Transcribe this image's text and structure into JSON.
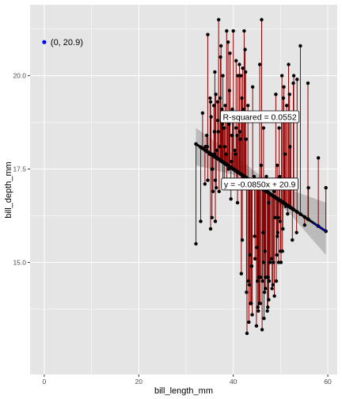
{
  "chart_data": {
    "type": "scatter",
    "xlabel": "bill_length_mm",
    "ylabel": "bill_depth_mm",
    "xlim": [
      -3.0,
      62.0
    ],
    "ylim": [
      12.0,
      21.9
    ],
    "x_ticks": [
      0,
      20,
      40,
      60
    ],
    "x_tick_labels": [
      "0",
      "20",
      "40",
      "60"
    ],
    "y_ticks": [
      15.0,
      17.5,
      20.0
    ],
    "y_tick_labels": [
      "15.0",
      "17.5",
      "20.0"
    ],
    "grid": true,
    "colors": {
      "panel": "#e5e5e5",
      "grid": "#ffffff",
      "point": "#000000",
      "residual": "#8b0000",
      "fit_line": "#000000",
      "ci_band": "#999999",
      "intercept_point": "#0000ff",
      "highlight_line": "#0000ff"
    },
    "regression": {
      "slope": -0.085,
      "intercept": 20.9
    },
    "ci_band": {
      "x": [
        32.1,
        40,
        46,
        52,
        59.6
      ],
      "lower": [
        17.6,
        17.35,
        16.95,
        16.3,
        15.2
      ],
      "upper": [
        18.6,
        17.9,
        17.3,
        16.95,
        16.6
      ]
    },
    "highlight_segment": {
      "x": [
        57.0,
        59.6
      ]
    },
    "intercept_point": {
      "x": 0,
      "y": 20.9,
      "label": "(0, 20.9)"
    },
    "annotations": [
      {
        "text": "R-squared = 0.0552",
        "x": 45.6,
        "y": 18.9
      },
      {
        "text": "y = -0.0850x + 20.9",
        "x": 45.6,
        "y": 17.1
      }
    ],
    "points": [
      [
        32.1,
        15.5
      ],
      [
        33.1,
        16.1
      ],
      [
        33.5,
        19.0
      ],
      [
        34.0,
        17.1
      ],
      [
        34.1,
        18.1
      ],
      [
        34.4,
        18.4
      ],
      [
        34.5,
        18.1
      ],
      [
        34.6,
        21.1
      ],
      [
        34.6,
        17.2
      ],
      [
        35.0,
        17.9
      ],
      [
        35.1,
        19.4
      ],
      [
        35.2,
        15.9
      ],
      [
        35.3,
        18.9
      ],
      [
        35.5,
        16.2
      ],
      [
        35.5,
        17.5
      ],
      [
        35.6,
        17.5
      ],
      [
        35.7,
        16.9
      ],
      [
        35.9,
        19.2
      ],
      [
        36.0,
        18.5
      ],
      [
        36.0,
        17.9
      ],
      [
        36.2,
        16.1
      ],
      [
        36.2,
        17.2
      ],
      [
        36.3,
        19.5
      ],
      [
        36.4,
        17.0
      ],
      [
        36.5,
        18.0
      ],
      [
        36.6,
        17.8
      ],
      [
        36.7,
        19.3
      ],
      [
        36.7,
        18.8
      ],
      [
        36.8,
        18.5
      ],
      [
        36.9,
        21.5
      ],
      [
        37.0,
        16.9
      ],
      [
        37.2,
        18.1
      ],
      [
        37.2,
        19.4
      ],
      [
        37.3,
        20.5
      ],
      [
        37.5,
        18.9
      ],
      [
        37.6,
        19.1
      ],
      [
        37.7,
        18.7
      ],
      [
        37.8,
        17.1
      ],
      [
        37.8,
        20.0
      ],
      [
        37.9,
        18.6
      ],
      [
        38.1,
        18.6
      ],
      [
        38.1,
        17.0
      ],
      [
        38.2,
        18.1
      ],
      [
        38.3,
        19.2
      ],
      [
        38.5,
        17.9
      ],
      [
        38.6,
        21.2
      ],
      [
        38.6,
        17.2
      ],
      [
        38.7,
        19.0
      ],
      [
        38.8,
        17.6
      ],
      [
        38.9,
        18.8
      ],
      [
        39.0,
        17.5
      ],
      [
        39.1,
        18.7
      ],
      [
        39.2,
        19.6
      ],
      [
        39.3,
        20.6
      ],
      [
        39.5,
        16.7
      ],
      [
        39.6,
        17.7
      ],
      [
        39.7,
        18.4
      ],
      [
        39.8,
        19.1
      ],
      [
        40.0,
        21.2
      ],
      [
        40.1,
        18.9
      ],
      [
        40.2,
        17.0
      ],
      [
        40.3,
        18.0
      ],
      [
        40.5,
        17.9
      ],
      [
        40.6,
        18.6
      ],
      [
        40.7,
        17.0
      ],
      [
        40.8,
        18.4
      ],
      [
        40.9,
        16.6
      ],
      [
        41.0,
        20.0
      ],
      [
        41.1,
        19.0
      ],
      [
        41.3,
        20.3
      ],
      [
        41.4,
        18.5
      ],
      [
        41.5,
        18.3
      ],
      [
        41.6,
        20.0
      ],
      [
        41.7,
        14.7
      ],
      [
        41.8,
        19.4
      ],
      [
        42.0,
        20.2
      ],
      [
        42.1,
        19.1
      ],
      [
        42.2,
        17.1
      ],
      [
        42.3,
        21.2
      ],
      [
        42.4,
        17.3
      ],
      [
        42.5,
        20.7
      ],
      [
        42.7,
        18.3
      ],
      [
        42.8,
        14.2
      ],
      [
        42.9,
        13.1
      ],
      [
        43.1,
        19.2
      ],
      [
        43.2,
        14.5
      ],
      [
        43.3,
        13.4
      ],
      [
        43.4,
        14.4
      ],
      [
        43.5,
        15.2
      ],
      [
        43.6,
        13.9
      ],
      [
        43.8,
        13.9
      ],
      [
        44.0,
        13.6
      ],
      [
        44.1,
        19.7
      ],
      [
        44.4,
        17.3
      ],
      [
        44.5,
        15.7
      ],
      [
        44.9,
        13.3
      ],
      [
        45.0,
        15.4
      ],
      [
        45.1,
        14.5
      ],
      [
        45.2,
        13.8
      ],
      [
        45.3,
        13.7
      ],
      [
        45.4,
        14.6
      ],
      [
        45.5,
        13.9
      ],
      [
        45.6,
        20.3
      ],
      [
        45.7,
        13.9
      ],
      [
        45.8,
        14.6
      ],
      [
        46.0,
        21.5
      ],
      [
        46.1,
        13.2
      ],
      [
        46.2,
        14.5
      ],
      [
        46.3,
        15.8
      ],
      [
        46.4,
        15.0
      ],
      [
        46.5,
        13.5
      ],
      [
        46.6,
        14.2
      ],
      [
        46.7,
        15.3
      ],
      [
        46.8,
        14.3
      ],
      [
        46.9,
        14.6
      ],
      [
        47.0,
        17.3
      ],
      [
        47.2,
        13.7
      ],
      [
        47.3,
        13.8
      ],
      [
        47.4,
        14.6
      ],
      [
        47.5,
        14.0
      ],
      [
        47.6,
        14.5
      ],
      [
        47.7,
        15.0
      ],
      [
        47.8,
        15.0
      ],
      [
        48.1,
        15.1
      ],
      [
        48.2,
        14.3
      ],
      [
        48.4,
        14.4
      ],
      [
        48.5,
        15.0
      ],
      [
        48.7,
        14.1
      ],
      [
        48.8,
        16.2
      ],
      [
        49.0,
        19.5
      ],
      [
        49.1,
        14.5
      ],
      [
        49.2,
        15.2
      ],
      [
        49.3,
        15.7
      ],
      [
        49.4,
        15.8
      ],
      [
        49.5,
        16.2
      ],
      [
        49.6,
        15.0
      ],
      [
        49.7,
        18.6
      ],
      [
        49.8,
        17.3
      ],
      [
        49.9,
        16.1
      ],
      [
        50.0,
        15.3
      ],
      [
        50.1,
        15.0
      ],
      [
        50.2,
        18.8
      ],
      [
        50.3,
        20.0
      ],
      [
        50.4,
        15.3
      ],
      [
        50.5,
        15.9
      ],
      [
        50.6,
        19.4
      ],
      [
        50.7,
        19.7
      ],
      [
        50.8,
        19.0
      ],
      [
        50.9,
        17.9
      ],
      [
        51.0,
        18.8
      ],
      [
        51.1,
        16.5
      ],
      [
        51.3,
        19.2
      ],
      [
        51.4,
        19.0
      ],
      [
        51.5,
        16.3
      ],
      [
        51.7,
        20.3
      ],
      [
        51.9,
        19.5
      ],
      [
        52.0,
        18.1
      ],
      [
        52.1,
        17.0
      ],
      [
        52.2,
        18.8
      ],
      [
        52.5,
        15.6
      ],
      [
        52.7,
        19.8
      ],
      [
        52.8,
        20.0
      ],
      [
        53.4,
        15.8
      ],
      [
        53.5,
        19.9
      ],
      [
        54.2,
        20.8
      ],
      [
        55.1,
        16.0
      ],
      [
        55.8,
        19.8
      ],
      [
        55.9,
        17.0
      ],
      [
        58.0,
        17.8
      ],
      [
        59.6,
        17.0
      ],
      [
        36.1,
        20.1
      ],
      [
        37.4,
        20.8
      ],
      [
        38.9,
        20.9
      ],
      [
        40.6,
        20.4
      ],
      [
        42.6,
        20.1
      ],
      [
        45.9,
        17.6
      ],
      [
        46.4,
        18.6
      ],
      [
        47.5,
        16.6
      ],
      [
        48.6,
        16.9
      ],
      [
        35.2,
        19.3
      ],
      [
        44.6,
        15.1
      ],
      [
        43.9,
        14.9
      ],
      [
        41.9,
        15.6
      ],
      [
        50.8,
        17.1
      ],
      [
        49.3,
        17.6
      ]
    ]
  }
}
